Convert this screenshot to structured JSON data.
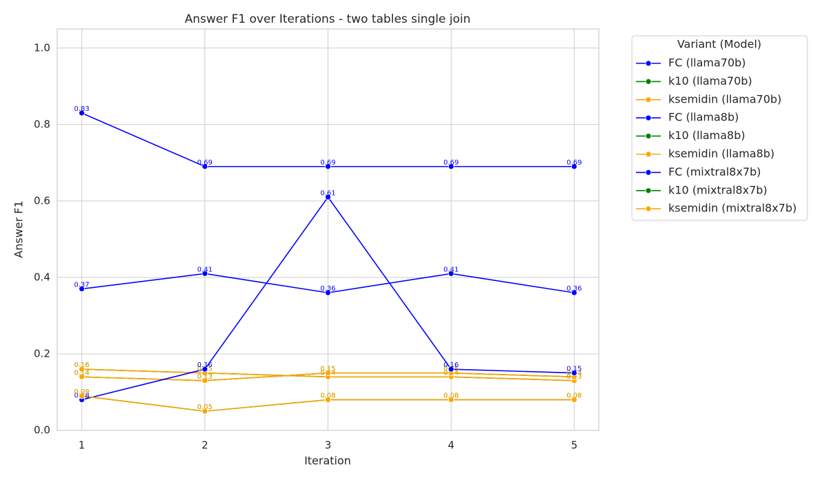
{
  "chart_data": {
    "type": "line",
    "title": "Answer F1 over Iterations - two tables single join",
    "x_label": "Iteration",
    "y_label": "Answer F1",
    "x": [
      1,
      2,
      3,
      4,
      5
    ],
    "xlim": [
      0.8,
      5.2
    ],
    "xticks": [
      1,
      2,
      3,
      4,
      5
    ],
    "ylim": [
      0,
      1.05
    ],
    "yticks": [
      {
        "value": 0,
        "label": "0.0"
      },
      0.2,
      0.4,
      0.6,
      0.8,
      {
        "value": 1,
        "label": "1.0"
      }
    ],
    "grid": true,
    "legend_title": "Variant (Model)",
    "legend_position": "outside-right",
    "series": [
      {
        "name": "FC (llama70b)",
        "color": "#0000ff",
        "values": [
          0.83,
          0.69,
          0.69,
          0.69,
          0.69
        ]
      },
      {
        "name": "k10 (llama70b)",
        "color": "#008000",
        "values": [
          0.16,
          0.15,
          0.14,
          0.14,
          0.13
        ]
      },
      {
        "name": "ksemidin (llama70b)",
        "color": "#ffa500",
        "values": [
          0.16,
          0.15,
          0.14,
          0.14,
          0.13
        ]
      },
      {
        "name": "FC (llama8b)",
        "color": "#0000ff",
        "values": [
          0.37,
          0.41,
          0.36,
          0.41,
          0.36
        ]
      },
      {
        "name": "k10 (llama8b)",
        "color": "#008000",
        "values": [
          0.14,
          0.13,
          0.15,
          0.15,
          0.14
        ]
      },
      {
        "name": "ksemidin (llama8b)",
        "color": "#ffa500",
        "values": [
          0.14,
          0.13,
          0.15,
          0.15,
          0.14
        ]
      },
      {
        "name": "FC (mixtral8x7b)",
        "color": "#0000ff",
        "values": [
          0.08,
          0.16,
          0.61,
          0.16,
          0.15
        ]
      },
      {
        "name": "k10 (mixtral8x7b)",
        "color": "#008000",
        "values": [
          0.09,
          0.05,
          0.08,
          0.08,
          0.08
        ]
      },
      {
        "name": "ksemidin (mixtral8x7b)",
        "color": "#ffa500",
        "values": [
          0.09,
          0.05,
          0.08,
          0.08,
          0.08
        ]
      }
    ]
  }
}
